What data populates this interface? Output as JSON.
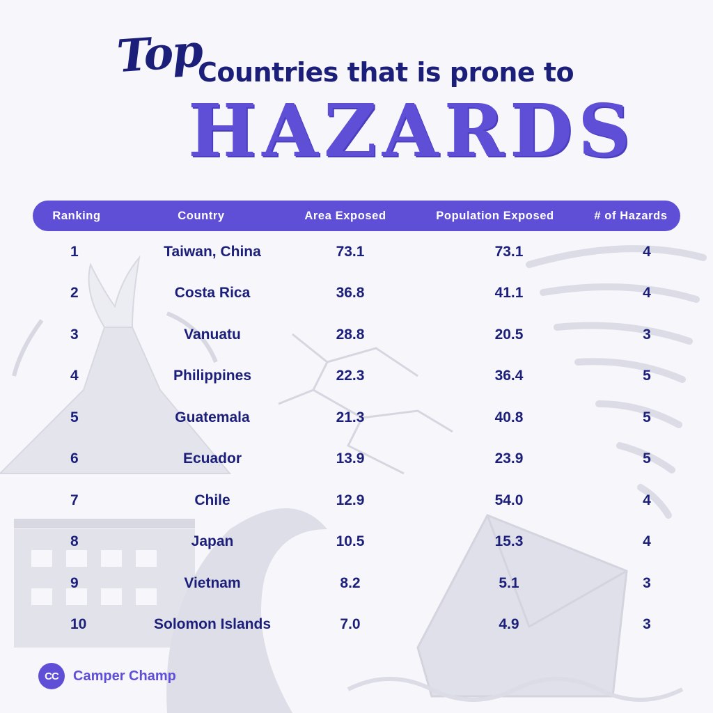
{
  "title": {
    "top": "Top",
    "rest": "Countries that is prone to",
    "hazards": "HAZARDS"
  },
  "brand": {
    "logo_text": "CC",
    "name": "Camper Champ"
  },
  "colors": {
    "header_bg": "#5e4fd6",
    "text_dark": "#1c1f7a",
    "accent": "#5e4fd6",
    "background": "#f6f6fb"
  },
  "chart_data": {
    "type": "table",
    "title": "Top Countries that is prone to HAZARDS",
    "columns": [
      "Ranking",
      "Country",
      "Area Exposed",
      "Population Exposed",
      "# of Hazards"
    ],
    "rows": [
      [
        "1",
        "Taiwan, China",
        "73.1",
        "73.1",
        "4"
      ],
      [
        "2",
        "Costa Rica",
        "36.8",
        "41.1",
        "4"
      ],
      [
        "3",
        "Vanuatu",
        "28.8",
        "20.5",
        "3"
      ],
      [
        "4",
        "Philippines",
        "22.3",
        "36.4",
        "5"
      ],
      [
        "5",
        "Guatemala",
        "21.3",
        "40.8",
        "5"
      ],
      [
        "6",
        "Ecuador",
        "13.9",
        "23.9",
        "5"
      ],
      [
        "7",
        "Chile",
        "12.9",
        "54.0",
        "4"
      ],
      [
        "8",
        "Japan",
        "10.5",
        "15.3",
        "4"
      ],
      [
        "9",
        "Vietnam",
        "8.2",
        "5.1",
        "3"
      ],
      [
        "10",
        "Solomon Islands",
        "7.0",
        "4.9",
        "3"
      ]
    ]
  }
}
